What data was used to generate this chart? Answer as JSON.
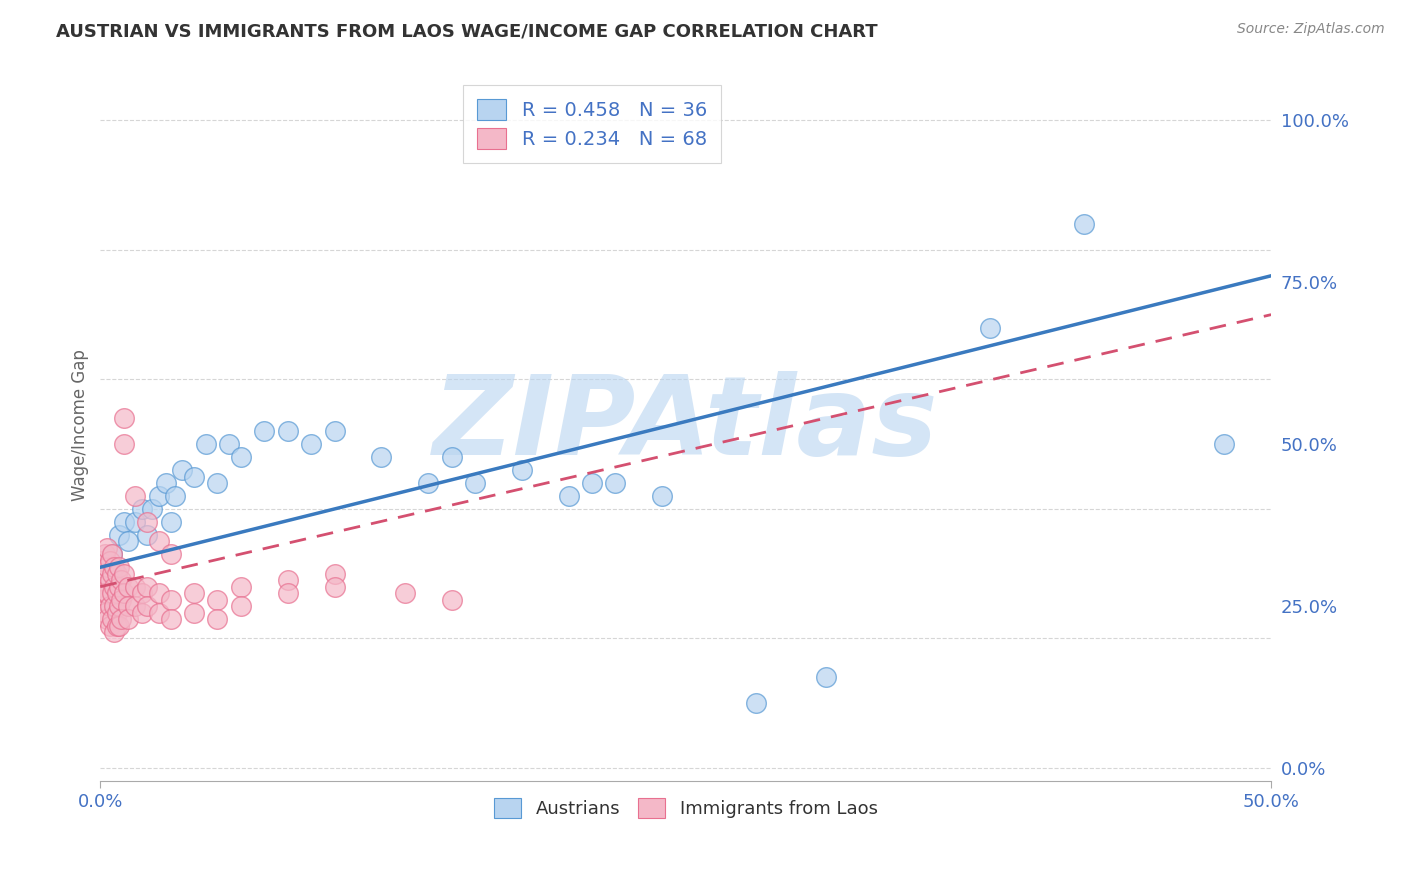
{
  "title": "AUSTRIAN VS IMMIGRANTS FROM LAOS WAGE/INCOME GAP CORRELATION CHART",
  "source": "Source: ZipAtlas.com",
  "ylabel": "Wage/Income Gap",
  "xlim": [
    0.0,
    0.5
  ],
  "ylim": [
    -0.02,
    1.08
  ],
  "xticks": [
    0.0,
    0.5
  ],
  "xtick_labels": [
    "0.0%",
    "50.0%"
  ],
  "yticks_right": [
    0.0,
    0.25,
    0.5,
    0.75,
    1.0
  ],
  "ytick_labels_right": [
    "0.0%",
    "25.0%",
    "50.0%",
    "75.0%",
    "100.0%"
  ],
  "blue_fill_color": "#b8d4f0",
  "blue_edge_color": "#5899d4",
  "pink_fill_color": "#f4b8c8",
  "pink_edge_color": "#e87090",
  "blue_line_color": "#3a7abf",
  "pink_line_color": "#d45070",
  "R_blue": 0.458,
  "N_blue": 36,
  "R_pink": 0.234,
  "N_pink": 68,
  "watermark": "ZIPAtlas",
  "watermark_color": "#b8d4f0",
  "blue_scatter": [
    [
      0.005,
      0.33
    ],
    [
      0.008,
      0.36
    ],
    [
      0.01,
      0.38
    ],
    [
      0.012,
      0.35
    ],
    [
      0.015,
      0.38
    ],
    [
      0.018,
      0.4
    ],
    [
      0.02,
      0.36
    ],
    [
      0.022,
      0.4
    ],
    [
      0.025,
      0.42
    ],
    [
      0.028,
      0.44
    ],
    [
      0.03,
      0.38
    ],
    [
      0.032,
      0.42
    ],
    [
      0.035,
      0.46
    ],
    [
      0.04,
      0.45
    ],
    [
      0.045,
      0.5
    ],
    [
      0.05,
      0.44
    ],
    [
      0.055,
      0.5
    ],
    [
      0.06,
      0.48
    ],
    [
      0.07,
      0.52
    ],
    [
      0.08,
      0.52
    ],
    [
      0.09,
      0.5
    ],
    [
      0.1,
      0.52
    ],
    [
      0.12,
      0.48
    ],
    [
      0.14,
      0.44
    ],
    [
      0.15,
      0.48
    ],
    [
      0.16,
      0.44
    ],
    [
      0.18,
      0.46
    ],
    [
      0.2,
      0.42
    ],
    [
      0.21,
      0.44
    ],
    [
      0.22,
      0.44
    ],
    [
      0.24,
      0.42
    ],
    [
      0.28,
      0.1
    ],
    [
      0.31,
      0.14
    ],
    [
      0.38,
      0.68
    ],
    [
      0.42,
      0.84
    ],
    [
      0.48,
      0.5
    ]
  ],
  "pink_scatter": [
    [
      0.0,
      0.3
    ],
    [
      0.0,
      0.32
    ],
    [
      0.0,
      0.28
    ],
    [
      0.0,
      0.26
    ],
    [
      0.002,
      0.3
    ],
    [
      0.002,
      0.33
    ],
    [
      0.002,
      0.27
    ],
    [
      0.002,
      0.24
    ],
    [
      0.003,
      0.31
    ],
    [
      0.003,
      0.34
    ],
    [
      0.003,
      0.27
    ],
    [
      0.003,
      0.23
    ],
    [
      0.004,
      0.32
    ],
    [
      0.004,
      0.29
    ],
    [
      0.004,
      0.25
    ],
    [
      0.004,
      0.22
    ],
    [
      0.005,
      0.33
    ],
    [
      0.005,
      0.3
    ],
    [
      0.005,
      0.27
    ],
    [
      0.005,
      0.23
    ],
    [
      0.006,
      0.31
    ],
    [
      0.006,
      0.28
    ],
    [
      0.006,
      0.25
    ],
    [
      0.006,
      0.21
    ],
    [
      0.007,
      0.3
    ],
    [
      0.007,
      0.27
    ],
    [
      0.007,
      0.24
    ],
    [
      0.007,
      0.22
    ],
    [
      0.008,
      0.31
    ],
    [
      0.008,
      0.28
    ],
    [
      0.008,
      0.25
    ],
    [
      0.008,
      0.22
    ],
    [
      0.009,
      0.29
    ],
    [
      0.009,
      0.26
    ],
    [
      0.009,
      0.23
    ],
    [
      0.01,
      0.3
    ],
    [
      0.01,
      0.27
    ],
    [
      0.01,
      0.5
    ],
    [
      0.01,
      0.54
    ],
    [
      0.012,
      0.28
    ],
    [
      0.012,
      0.25
    ],
    [
      0.012,
      0.23
    ],
    [
      0.015,
      0.28
    ],
    [
      0.015,
      0.25
    ],
    [
      0.015,
      0.42
    ],
    [
      0.018,
      0.27
    ],
    [
      0.018,
      0.24
    ],
    [
      0.02,
      0.28
    ],
    [
      0.02,
      0.25
    ],
    [
      0.02,
      0.38
    ],
    [
      0.025,
      0.27
    ],
    [
      0.025,
      0.24
    ],
    [
      0.025,
      0.35
    ],
    [
      0.03,
      0.26
    ],
    [
      0.03,
      0.23
    ],
    [
      0.03,
      0.33
    ],
    [
      0.04,
      0.27
    ],
    [
      0.04,
      0.24
    ],
    [
      0.05,
      0.26
    ],
    [
      0.05,
      0.23
    ],
    [
      0.06,
      0.28
    ],
    [
      0.06,
      0.25
    ],
    [
      0.08,
      0.29
    ],
    [
      0.08,
      0.27
    ],
    [
      0.1,
      0.3
    ],
    [
      0.1,
      0.28
    ],
    [
      0.13,
      0.27
    ],
    [
      0.15,
      0.26
    ]
  ],
  "background_color": "#ffffff",
  "grid_color": "#cccccc",
  "legend1_label_blue": "R = 0.458   N = 36",
  "legend1_label_pink": "R = 0.234   N = 68",
  "legend2_label_blue": "Austrians",
  "legend2_label_pink": "Immigrants from Laos"
}
